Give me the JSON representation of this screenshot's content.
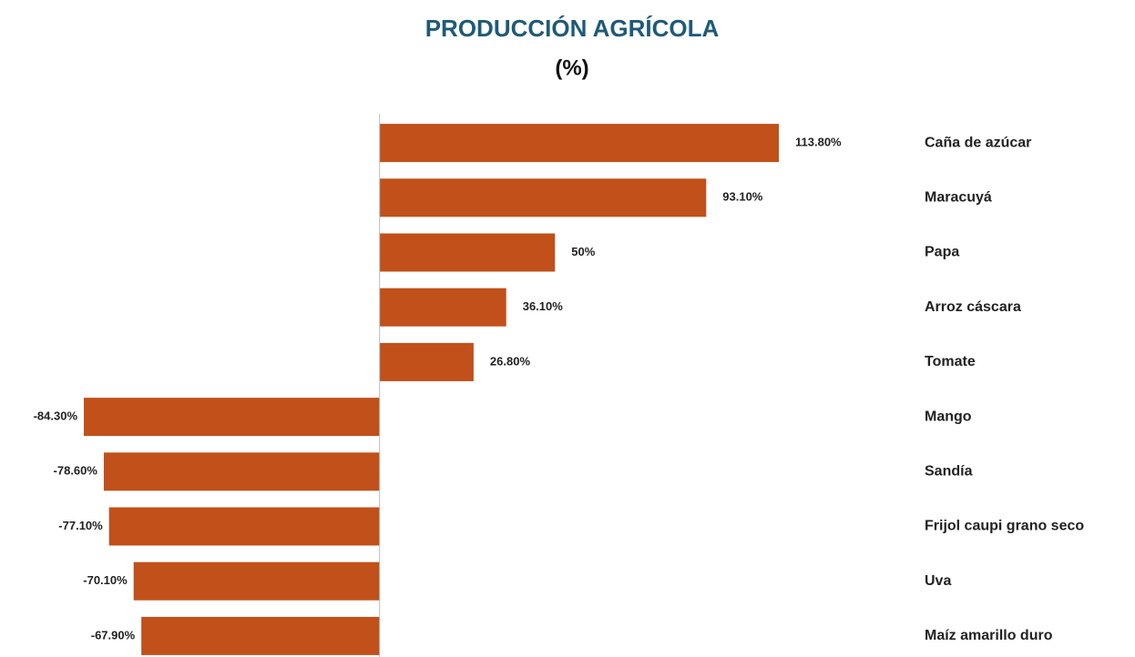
{
  "chart_data": {
    "type": "barh",
    "title": "PRODUCCIÓN AGRÍCOLA",
    "subtitle": "(%)",
    "categories": [
      "Caña de azúcar",
      "Maracuyá",
      "Papa",
      "Arroz cáscara",
      "Tomate",
      "Mango",
      "Sandía",
      "Frijol caupi grano seco",
      "Uva",
      "Maíz amarillo duro"
    ],
    "values": [
      113.8,
      93.1,
      50,
      36.1,
      26.8,
      -84.3,
      -78.6,
      -77.1,
      -70.1,
      -67.9
    ],
    "value_labels": [
      "113.80%",
      "93.10%",
      "50%",
      "36.10%",
      "26.80%",
      "-84.30%",
      "-78.60%",
      "-77.10%",
      "-70.10%",
      "-67.90%"
    ],
    "color": "#c1501a",
    "grid": false
  }
}
